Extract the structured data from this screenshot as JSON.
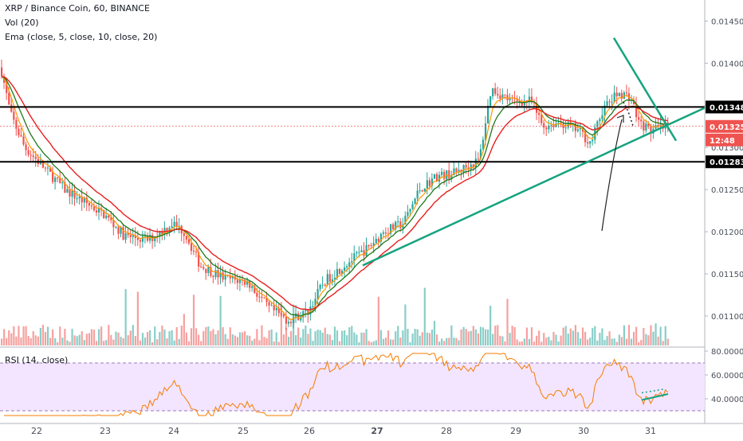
{
  "legend": {
    "title": "XRP / Binance Coin, 60, BINANCE",
    "volume": "Vol (20)",
    "ema": "Ema (close, 5, close, 10, close, 20)",
    "rsi": "RSI (14, close)"
  },
  "colors": {
    "up": "#26a69a",
    "down": "#ef5350",
    "ema_fast": "#ff9800",
    "ema_mid": "#1b7a1b",
    "ema_slow": "#e91e1e",
    "trendline": "#15a37f",
    "level": "#000000",
    "rsi_line": "#f57c00",
    "rsi_band": "#f3e5ff"
  },
  "chart_data": {
    "type": "candlestick",
    "x_ticks": [
      "22",
      "23",
      "24",
      "25",
      "26",
      "27",
      "28",
      "29",
      "30",
      "31"
    ],
    "price_ticks": [
      "0.01450",
      "0.01400",
      "0.01350",
      "0.01300",
      "0.01250",
      "0.01200",
      "0.01150",
      "0.01100"
    ],
    "ylim": [
      0.01065,
      0.01475
    ],
    "price_labels": {
      "resistance": "0.01348",
      "current": "0.01325",
      "countdown": "12:48",
      "support": "0.01283"
    },
    "levels": [
      0.01348,
      0.01283
    ],
    "current_price": 0.01325,
    "rsi": {
      "ticks": [
        "80.0000",
        "60.0000",
        "40.0000"
      ],
      "ylim": [
        22,
        82
      ],
      "bands": [
        70,
        30
      ]
    }
  }
}
